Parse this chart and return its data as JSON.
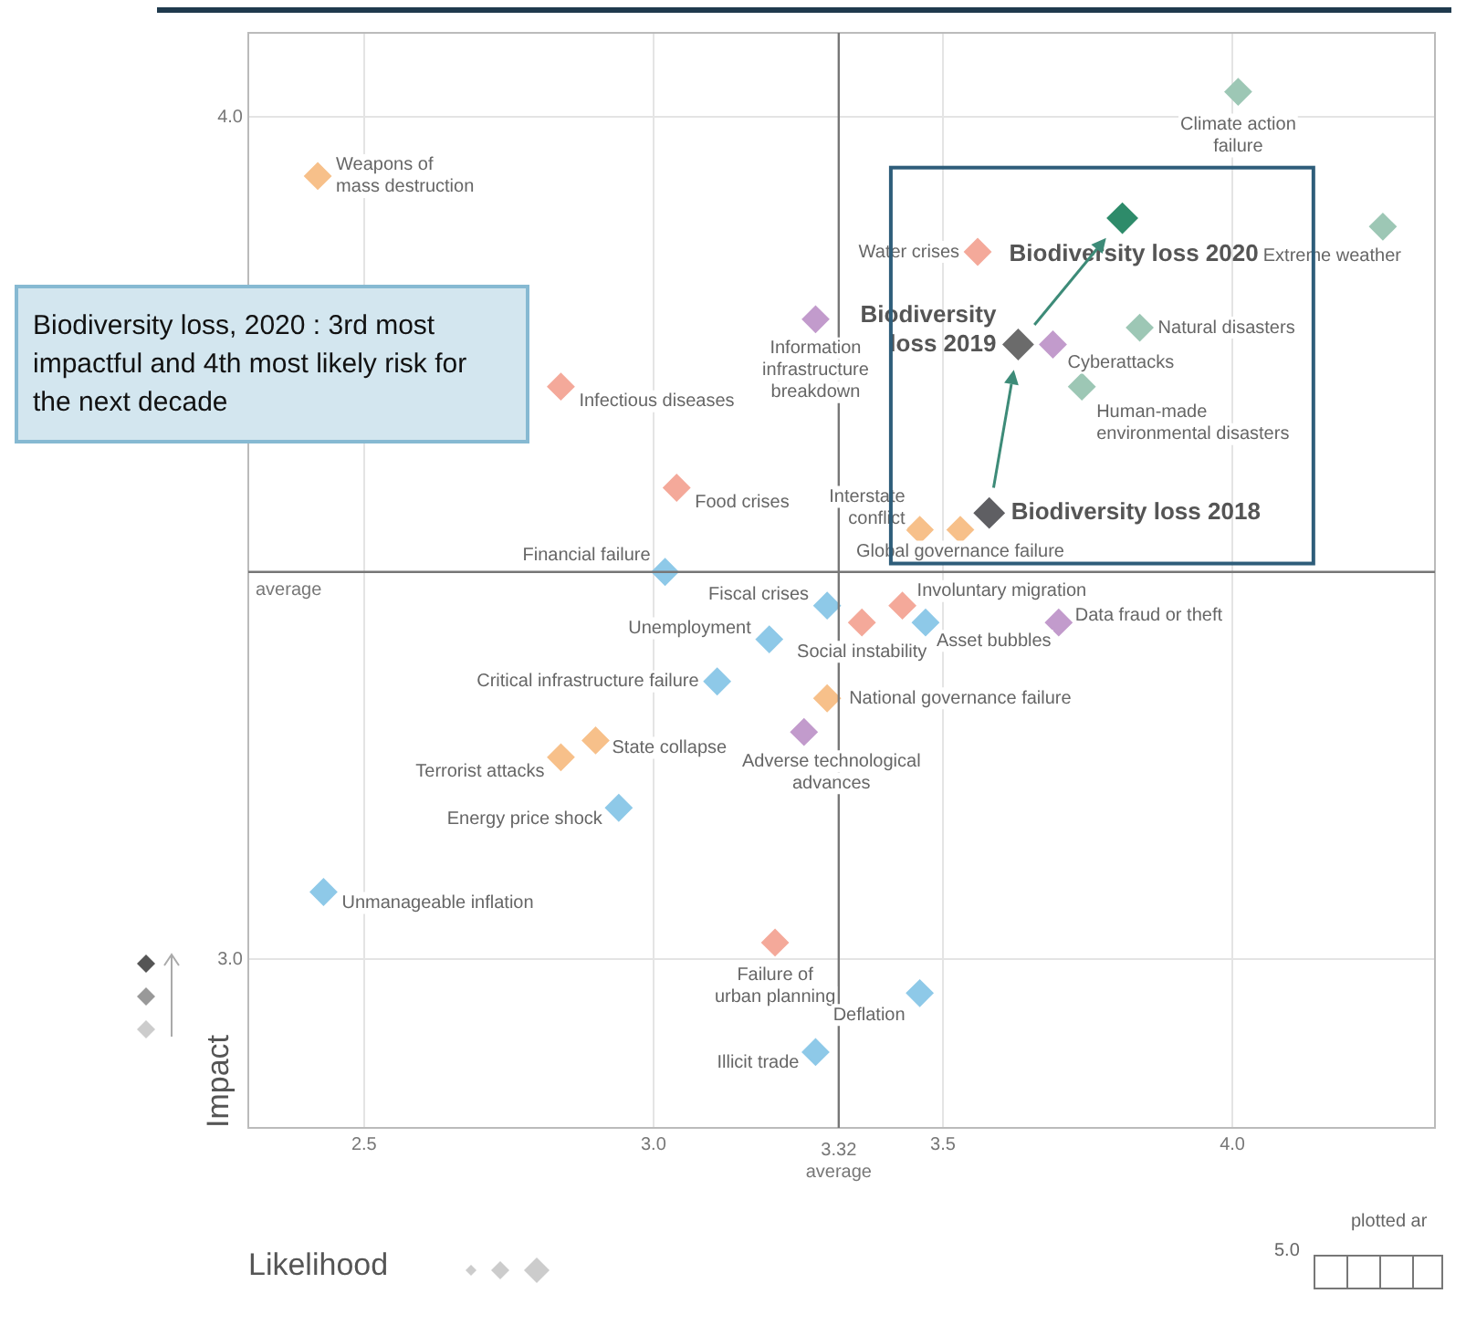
{
  "chart_data": {
    "type": "scatter",
    "xlabel": "Likelihood",
    "ylabel": "Impact",
    "xlim": [
      2.3,
      4.35
    ],
    "ylim": [
      2.8,
      4.1
    ],
    "xticks": [
      2.5,
      {
        "value": 3,
        "label": "3.0"
      },
      3.5,
      {
        "value": 4,
        "label": "4.0"
      }
    ],
    "yticks": [
      {
        "value": 3,
        "label": "3.0"
      },
      {
        "value": 4,
        "label": "4.0"
      }
    ],
    "grid": true,
    "marker": "diamond",
    "ref_lines": [
      {
        "axis": "x",
        "value": 3.32,
        "label": "3.32\naverage",
        "color": "#777777"
      },
      {
        "axis": "y",
        "value": 3.46,
        "label": "average",
        "color": "#777777"
      }
    ],
    "series": [
      {
        "x": [
          2.42,
          2.84,
          3.04,
          3.02,
          3.28,
          3.3,
          3.2,
          3.36,
          3.43,
          3.47,
          3.7,
          3.11,
          3.3,
          3.26,
          2.84,
          2.9,
          2.94,
          2.43,
          3.21,
          3.46,
          3.28,
          4.01,
          4.26,
          3.56,
          3.69,
          3.84,
          3.74,
          3.46,
          3.53
        ],
        "values": [
          3.93,
          3.68,
          3.56,
          3.46,
          3.76,
          3.42,
          3.38,
          3.4,
          3.42,
          3.4,
          3.4,
          3.33,
          3.31,
          3.27,
          3.24,
          3.26,
          3.18,
          3.08,
          3.02,
          2.96,
          2.89,
          4.03,
          3.87,
          3.84,
          3.73,
          3.75,
          3.68,
          3.51,
          3.51
        ],
        "colors": [
          "#f7c08a",
          "#f4a99a",
          "#f4a99a",
          "#8ec9e8",
          "#c29bcc",
          "#8ec9e8",
          "#8ec9e8",
          "#f4a99a",
          "#f4a99a",
          "#8ec9e8",
          "#c29bcc",
          "#8ec9e8",
          "#f7c08a",
          "#c29bcc",
          "#f7c08a",
          "#f7c08a",
          "#8ec9e8",
          "#8ec9e8",
          "#f4a99a",
          "#8ec9e8",
          "#8ec9e8",
          "#9dc7b5",
          "#9dc7b5",
          "#f4a99a",
          "#c29bcc",
          "#9dc7b5",
          "#9dc7b5",
          "#f7c08a",
          "#f7c08a"
        ]
      },
      {
        "name": "Biodiversity loss 2020",
        "color": "#2e8b6a",
        "x": [
          3.81
        ],
        "values": [
          3.88
        ]
      },
      {
        "name": "Biodiversity loss 2019",
        "color": "#6b6b6b",
        "x": [
          3.63
        ],
        "values": [
          3.73
        ]
      },
      {
        "name": "Biodiversity loss 2018",
        "color": "#5f5f63",
        "x": [
          3.58
        ],
        "values": [
          3.53
        ]
      }
    ],
    "annotations": [
      "Biodiversity loss, 2020 : 3rd most impactful and 4th most likely risk for the next decade",
      "plotted ar",
      "5.0",
      {
        "text": "Weapons of\nmass destruction",
        "x": 2.42,
        "y": 3.93
      },
      {
        "text": "Infectious diseases",
        "x": 2.84,
        "y": 3.68
      },
      {
        "text": "Food crises",
        "x": 3.04,
        "y": 3.56
      },
      {
        "text": "Financial failure",
        "x": 3.02,
        "y": 3.46
      },
      {
        "text": "Information\ninfrastructure\nbreakdown",
        "x": 3.28,
        "y": 3.76
      },
      {
        "text": "Fiscal crises",
        "x": 3.3,
        "y": 3.42
      },
      {
        "text": "Unemployment",
        "x": 3.2,
        "y": 3.38
      },
      {
        "text": "Social instability",
        "x": 3.36,
        "y": 3.4
      },
      {
        "text": "Involuntary migration",
        "x": 3.43,
        "y": 3.42
      },
      {
        "text": "Asset bubbles",
        "x": 3.47,
        "y": 3.4
      },
      {
        "text": "Data fraud or theft",
        "x": 3.7,
        "y": 3.4
      },
      {
        "text": "Critical infrastructure failure",
        "x": 3.11,
        "y": 3.33
      },
      {
        "text": "National governance failure",
        "x": 3.3,
        "y": 3.31
      },
      {
        "text": "Adverse technological\nadvances",
        "x": 3.26,
        "y": 3.27
      },
      {
        "text": "Terrorist attacks",
        "x": 2.84,
        "y": 3.24
      },
      {
        "text": "State collapse",
        "x": 2.9,
        "y": 3.26
      },
      {
        "text": "Energy price shock",
        "x": 2.94,
        "y": 3.18
      },
      {
        "text": "Unmanageable inflation",
        "x": 2.43,
        "y": 3.08
      },
      {
        "text": "Failure of\nurban planning",
        "x": 3.21,
        "y": 3.02
      },
      {
        "text": "Deflation",
        "x": 3.46,
        "y": 2.96
      },
      {
        "text": "Illicit trade",
        "x": 3.28,
        "y": 2.89
      },
      {
        "text": "Climate action\nfailure",
        "x": 4.01,
        "y": 4.03
      },
      {
        "text": "Extreme weather",
        "x": 4.26,
        "y": 3.87
      },
      {
        "text": "Water crises",
        "x": 3.56,
        "y": 3.84
      },
      {
        "text": "Cyberattacks",
        "x": 3.69,
        "y": 3.73
      },
      {
        "text": "Natural disasters",
        "x": 3.84,
        "y": 3.75
      },
      {
        "text": "Human-made\nenvironmental disasters",
        "x": 3.74,
        "y": 3.68
      },
      {
        "text": "Interstate\nconflict",
        "x": 3.46,
        "y": 3.51
      },
      {
        "text": "Global governance failure",
        "x": 3.53,
        "y": 3.51
      }
    ]
  }
}
